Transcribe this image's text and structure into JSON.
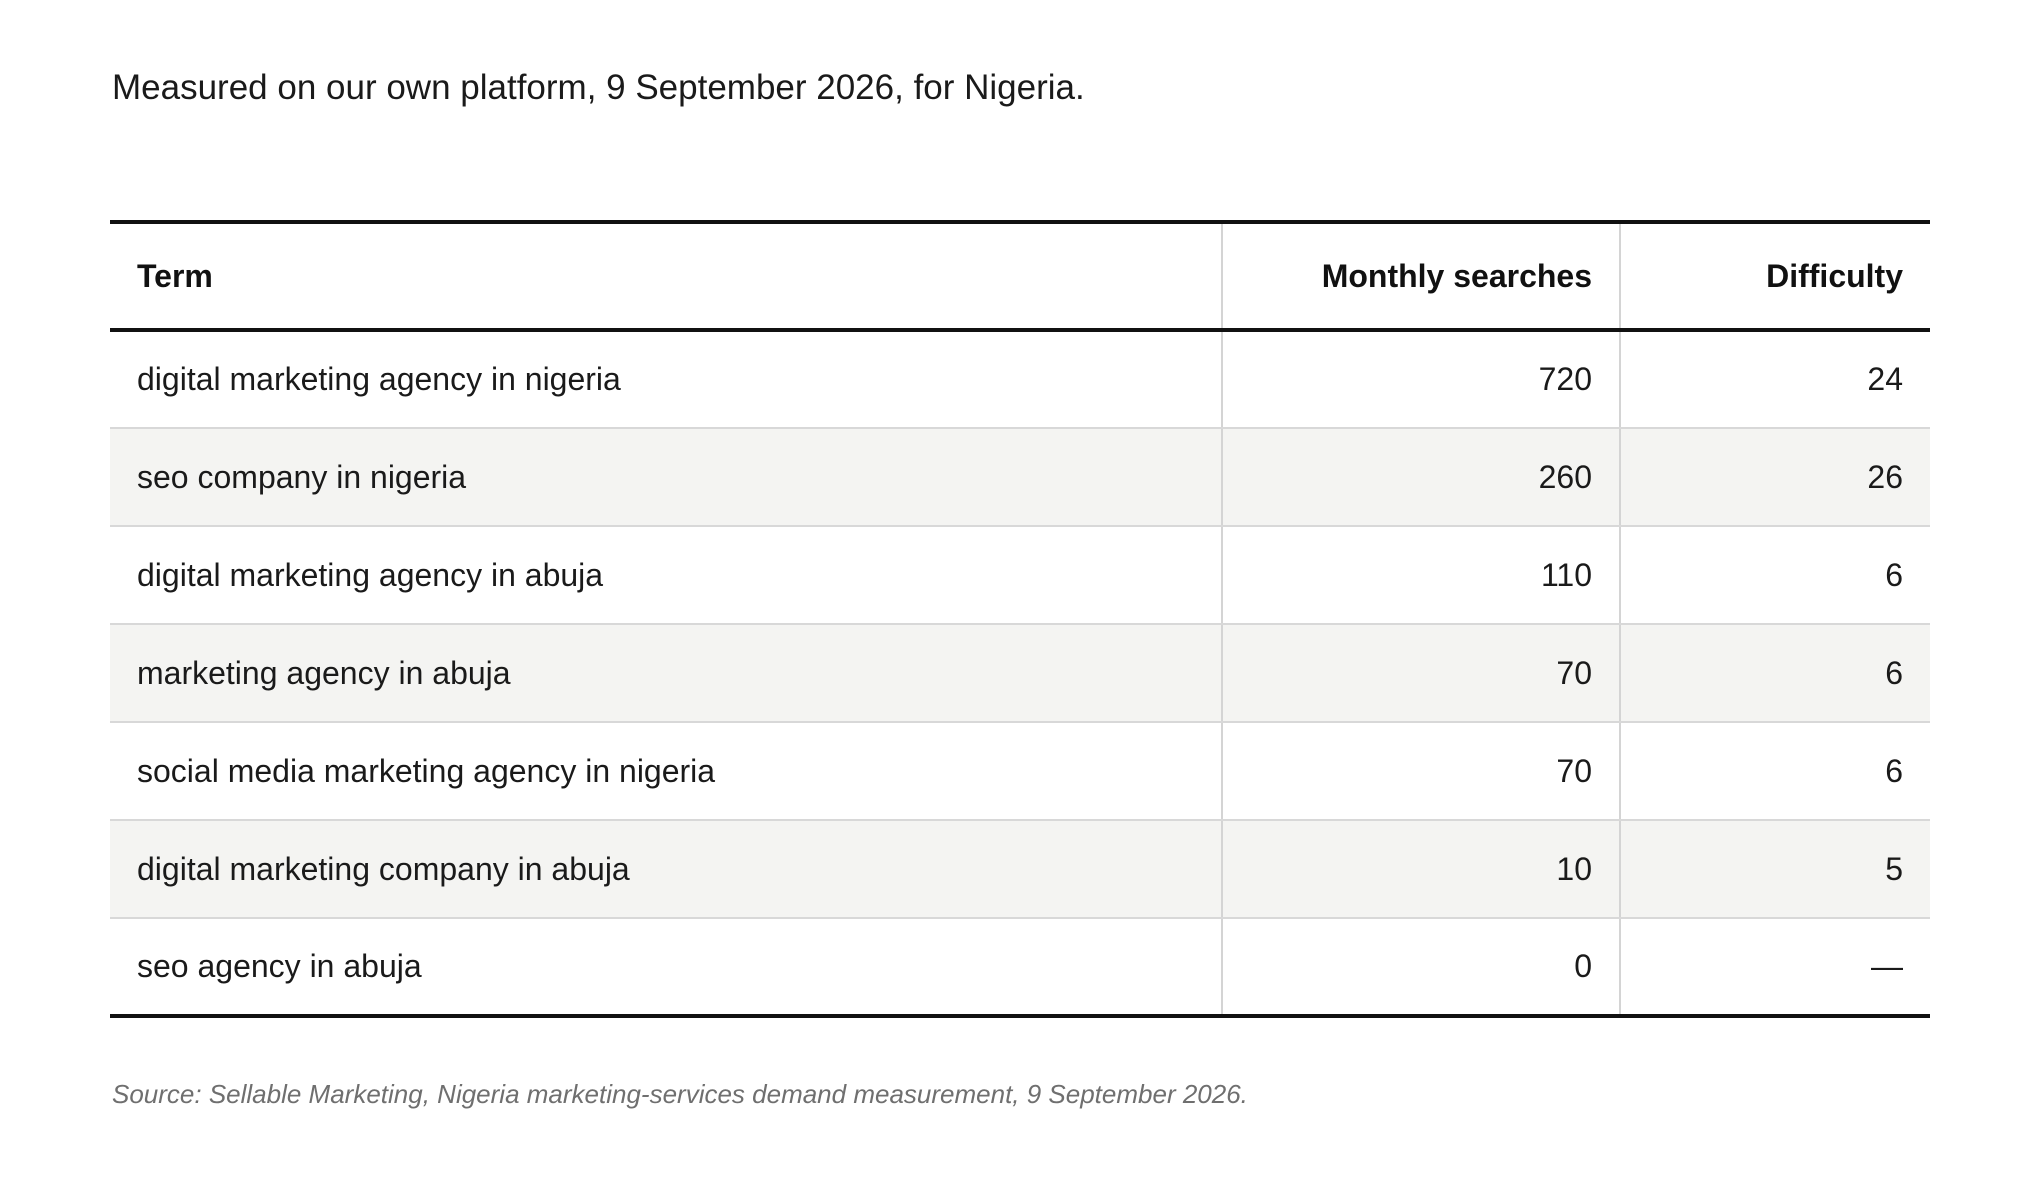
{
  "intro": "Measured on our own platform, 9 September 2026, for Nigeria.",
  "table": {
    "headers": {
      "term": "Term",
      "searches": "Monthly searches",
      "difficulty": "Difficulty"
    },
    "rows": [
      {
        "term": "digital marketing agency in nigeria",
        "searches": "720",
        "difficulty": "24"
      },
      {
        "term": "seo company in nigeria",
        "searches": "260",
        "difficulty": "26"
      },
      {
        "term": "digital marketing agency in abuja",
        "searches": "110",
        "difficulty": "6"
      },
      {
        "term": "marketing agency in abuja",
        "searches": "70",
        "difficulty": "6"
      },
      {
        "term": "social media marketing agency in nigeria",
        "searches": "70",
        "difficulty": "6"
      },
      {
        "term": "digital marketing company in abuja",
        "searches": "10",
        "difficulty": "5"
      },
      {
        "term": "seo agency in abuja",
        "searches": "0",
        "difficulty": "—"
      }
    ]
  },
  "source": "Source: Sellable Marketing, Nigeria marketing-services demand measurement, 9 September 2026."
}
